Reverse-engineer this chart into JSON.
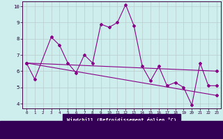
{
  "xlabel": "Windchill (Refroidissement éolien,°C)",
  "background_color": "#ceeeed",
  "grid_color": "#bbcccc",
  "line_color": "#880088",
  "axis_label_bg": "#330055",
  "xlim": [
    -0.5,
    23.5
  ],
  "ylim": [
    3.7,
    10.3
  ],
  "yticks": [
    4,
    5,
    6,
    7,
    8,
    9,
    10
  ],
  "xticks": [
    0,
    1,
    2,
    3,
    4,
    5,
    6,
    7,
    8,
    9,
    10,
    11,
    12,
    13,
    14,
    15,
    16,
    17,
    18,
    19,
    20,
    21,
    22,
    23
  ],
  "series1_x": [
    0,
    1,
    3,
    4,
    5,
    6,
    7,
    8,
    9,
    10,
    11,
    12,
    13,
    14,
    15,
    16,
    17,
    18,
    19,
    20,
    21,
    22,
    23
  ],
  "series1_y": [
    6.5,
    5.5,
    8.1,
    7.6,
    6.5,
    5.9,
    7.0,
    6.5,
    8.9,
    8.7,
    9.0,
    10.1,
    8.8,
    6.3,
    5.4,
    6.3,
    5.1,
    5.3,
    5.0,
    3.9,
    6.5,
    5.1,
    5.1
  ],
  "series2_x": [
    0,
    23
  ],
  "series2_y": [
    6.5,
    6.0
  ],
  "series3_x": [
    0,
    23
  ],
  "series3_y": [
    6.5,
    4.5
  ]
}
